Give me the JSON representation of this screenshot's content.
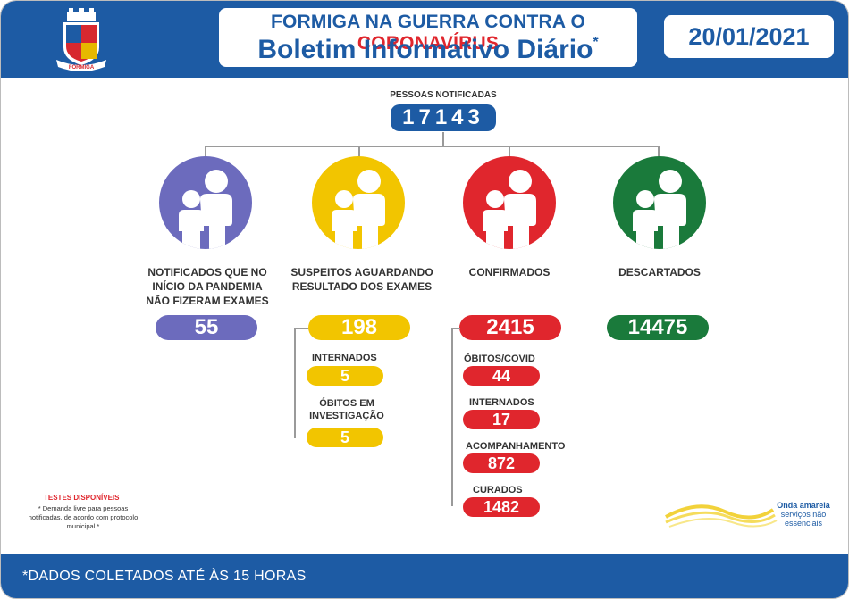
{
  "header": {
    "title_part1": "FORMIGA NA GUERRA CONTRA O ",
    "title_part2": "CORONAVÍRUS",
    "subtitle": "Boletim Informativo Diário",
    "asterisk": "*",
    "date": "20/01/2021",
    "crest_label": "FORMIGA"
  },
  "total": {
    "label": "PESSOAS NOTIFICADAS",
    "value": "17143"
  },
  "categories": [
    {
      "label": "NOTIFICADOS QUE NO INÍCIO DA PANDEMIA NÃO FIZERAM EXAMES",
      "value": "55",
      "color": "#6c6bbd"
    },
    {
      "label": "SUSPEITOS AGUARDANDO RESULTADO DOS EXAMES",
      "value": "198",
      "color": "#f2c500"
    },
    {
      "label": "CONFIRMADOS",
      "value": "2415",
      "color": "#e0262d"
    },
    {
      "label": "DESCARTADOS",
      "value": "14475",
      "color": "#1a7a3b"
    }
  ],
  "suspeitos_sub": [
    {
      "label": "INTERNADOS",
      "value": "5"
    },
    {
      "label": "ÓBITOS EM INVESTIGAÇÃO",
      "value": "5"
    }
  ],
  "confirmados_sub": [
    {
      "label": "ÓBITOS/COVID",
      "value": "44"
    },
    {
      "label": "INTERNADOS",
      "value": "17"
    },
    {
      "label": "ACOMPANHAMENTO",
      "value": "872"
    },
    {
      "label": "CURADOS",
      "value": "1482"
    }
  ],
  "note": {
    "title": "TESTES DISPONÍVEIS",
    "text": "* Demanda livre para pessoas notificadas, de acordo com protocolo municipal *"
  },
  "onda": {
    "title": "Onda amarela",
    "text": "serviços não essenciais"
  },
  "footer": {
    "text": "*DADOS COLETADOS ATÉ ÀS 15 HORAS"
  }
}
